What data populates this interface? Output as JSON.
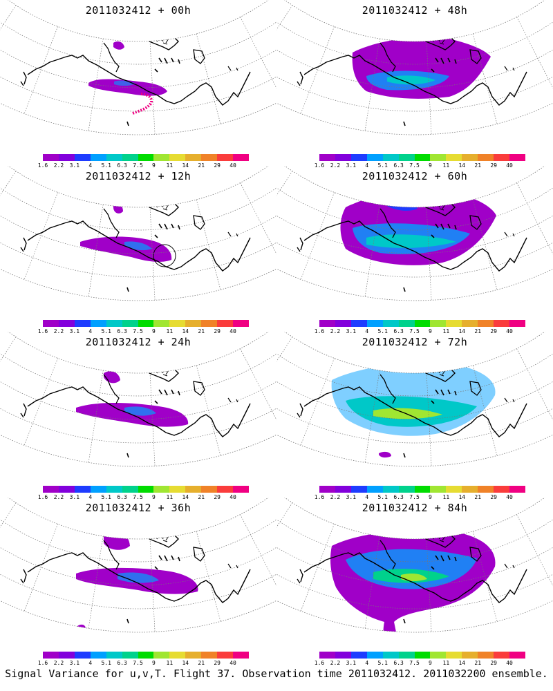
{
  "panels": [
    {
      "title": "2011032412 + 00h",
      "lead_hours": 0
    },
    {
      "title": "2011032412 + 48h",
      "lead_hours": 48
    },
    {
      "title": "2011032412 + 12h",
      "lead_hours": 12
    },
    {
      "title": "2011032412 + 60h",
      "lead_hours": 60
    },
    {
      "title": "2011032412 + 24h",
      "lead_hours": 24
    },
    {
      "title": "2011032412 + 72h",
      "lead_hours": 72
    },
    {
      "title": "2011032412 + 36h",
      "lead_hours": 36
    },
    {
      "title": "2011032412 + 84h",
      "lead_hours": 84
    }
  ],
  "colorbar": {
    "labels": [
      "1.6",
      "2.2",
      "3.1",
      "4",
      "5.1",
      "6.3",
      "7.5",
      "9",
      "11",
      "14",
      "21",
      "29",
      "40"
    ],
    "colors": [
      "#a000c8",
      "#8200dc",
      "#1e3cff",
      "#00a0ff",
      "#00c8c8",
      "#00d28c",
      "#00dc00",
      "#a0e632",
      "#e6dc32",
      "#e6af2d",
      "#f08228",
      "#fa3c3c",
      "#f00082"
    ]
  },
  "caption": "Signal Variance for u,v,T. Flight 37. Observation time 2011032412. 2011032200 ensemble."
}
